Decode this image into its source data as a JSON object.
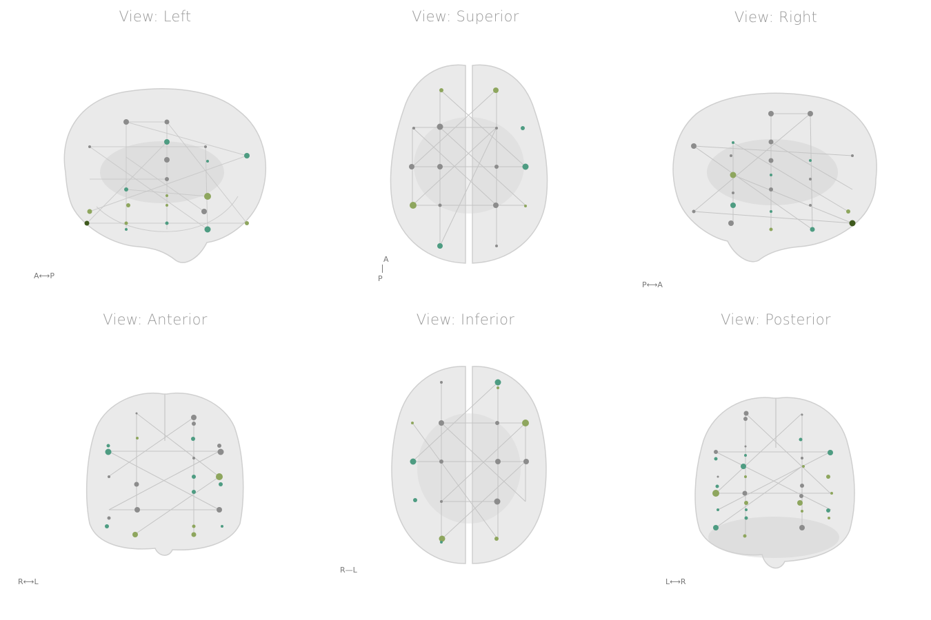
{
  "colors": {
    "brain_fill": "#d9d9d9",
    "brain_stroke": "#cfcfcf",
    "edge": "#c4c4c4",
    "node_gray": "#8c8c8c",
    "node_teal": "#4e9c82",
    "node_olive": "#8ea65e",
    "node_dark": "#3f5a1e",
    "title": "#9a9a9a"
  },
  "views": [
    {
      "id": "left",
      "title": "View: Left",
      "orientation": {
        "a": "A",
        "b": "P",
        "arrow": "⟷"
      }
    },
    {
      "id": "superior",
      "title": "View: Superior",
      "orientation": {
        "a": "A",
        "b": "P"
      }
    },
    {
      "id": "right",
      "title": "View: Right",
      "orientation": {
        "a": "P",
        "b": "A",
        "arrow": "⟷"
      }
    },
    {
      "id": "anterior",
      "title": "View: Anterior",
      "orientation": {
        "a": "R",
        "b": "L",
        "arrow": "⟷"
      }
    },
    {
      "id": "inferior",
      "title": "View: Inferior",
      "orientation": {
        "a": "R",
        "b": "L",
        "arrow": "—"
      }
    },
    {
      "id": "posterior",
      "title": "View: Posterior",
      "orientation": {
        "a": "L",
        "b": "R",
        "arrow": "⟷"
      }
    }
  ]
}
